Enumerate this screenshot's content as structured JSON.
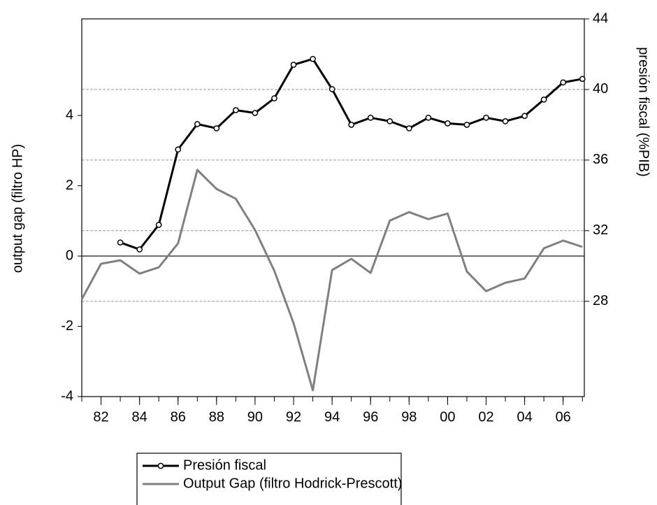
{
  "chart_data": {
    "type": "line",
    "y_label": "output gap (filtro HP)",
    "y2_label": "presión fiscal (%PIB)",
    "x": [
      1981,
      1982,
      1983,
      1984,
      1985,
      1986,
      1987,
      1988,
      1989,
      1990,
      1991,
      1992,
      1993,
      1994,
      1995,
      1996,
      1997,
      1998,
      1999,
      2000,
      2001,
      2002,
      2003,
      2004,
      2005,
      2006,
      2007
    ],
    "xlim": [
      1981,
      2007.1
    ],
    "xticks": [
      {
        "value": 1982,
        "label": "82"
      },
      {
        "value": 1984,
        "label": "84"
      },
      {
        "value": 1986,
        "label": "86"
      },
      {
        "value": 1988,
        "label": "88"
      },
      {
        "value": 1990,
        "label": "90"
      },
      {
        "value": 1992,
        "label": "92"
      },
      {
        "value": 1994,
        "label": "94"
      },
      {
        "value": 1996,
        "label": "96"
      },
      {
        "value": 1998,
        "label": "98"
      },
      {
        "value": 2000,
        "label": "00"
      },
      {
        "value": 2002,
        "label": "02"
      },
      {
        "value": 2004,
        "label": "04"
      },
      {
        "value": 2006,
        "label": "06"
      }
    ],
    "ylim": [
      -4,
      6.75
    ],
    "yticks": [
      -4,
      -2,
      0,
      2,
      4
    ],
    "y2lim": [
      22.6,
      44
    ],
    "y2ticks": [
      28,
      32,
      36,
      40,
      44
    ],
    "grid": true,
    "legend": "bottom",
    "series": [
      {
        "name": "Presión fiscal",
        "color": "#000000",
        "axis": "y2",
        "marker": "circle",
        "values": [
          null,
          null,
          31.33,
          30.94,
          32.33,
          36.6,
          38.04,
          37.8,
          38.83,
          38.67,
          39.5,
          41.4,
          41.73,
          40.02,
          38.0,
          38.4,
          38.2,
          37.8,
          38.4,
          38.08,
          38.0,
          38.4,
          38.2,
          38.5,
          39.43,
          40.4,
          40.6
        ]
      },
      {
        "name": "Output Gap (filtro Hodrick-Prescott)",
        "color": "#808080",
        "values": [
          -1.23,
          -0.22,
          -0.12,
          -0.5,
          -0.32,
          0.36,
          2.45,
          1.91,
          1.63,
          0.74,
          -0.42,
          -1.91,
          -3.82,
          -0.4,
          -0.08,
          -0.48,
          1.01,
          1.25,
          1.05,
          1.21,
          -0.44,
          -1.0,
          -0.76,
          -0.64,
          0.22,
          0.44,
          0.26
        ]
      }
    ]
  }
}
